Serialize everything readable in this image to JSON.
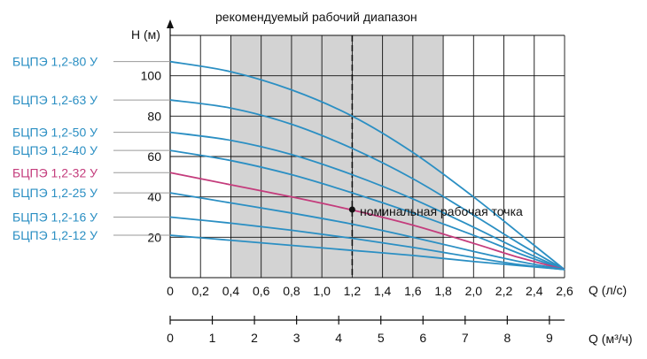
{
  "chart_data": {
    "type": "line",
    "title": "рекомендуемый рабочий диапазон",
    "ylabel": "H (м)",
    "xlabel": "Q (л/с)",
    "xlabel2": "Q (м³/ч)",
    "xlim": [
      0,
      2.6
    ],
    "ylim": [
      0,
      120
    ],
    "x_ticks": [
      "0",
      "0,2",
      "0,4",
      "0,6",
      "0,8",
      "1,0",
      "1,2",
      "1,4",
      "1,6",
      "1,8",
      "2,0",
      "2,2",
      "2,4",
      "2,6"
    ],
    "y_ticks": [
      "20",
      "40",
      "60",
      "80",
      "100"
    ],
    "x2_ticks": [
      "0",
      "1",
      "2",
      "3",
      "4",
      "5",
      "6",
      "7",
      "8",
      "9"
    ],
    "recommended_range": [
      0.4,
      1.8
    ],
    "nominal_point": {
      "x": 1.2,
      "label": "номинальная рабочая точка"
    },
    "colors": {
      "curve": "#2b8fc3",
      "highlight": "#c43c7c",
      "band": "#d3d3d3",
      "label": "#2b8fc3"
    },
    "series": [
      {
        "name": "БЦПЭ 1,2-80 У",
        "highlight": false,
        "x": [
          0,
          0.4,
          0.8,
          1.2,
          1.6,
          2.0,
          2.3,
          2.6
        ],
        "values": [
          107,
          102,
          93,
          80,
          62,
          40,
          22,
          4
        ]
      },
      {
        "name": "БЦПЭ 1,2-63 У",
        "highlight": false,
        "x": [
          0,
          0.4,
          0.8,
          1.2,
          1.6,
          2.0,
          2.3,
          2.6
        ],
        "values": [
          88,
          84,
          76,
          64,
          49,
          31,
          17,
          4
        ]
      },
      {
        "name": "БЦПЭ 1,2-50 У",
        "highlight": false,
        "x": [
          0,
          0.4,
          0.8,
          1.2,
          1.6,
          2.0,
          2.3,
          2.6
        ],
        "values": [
          72,
          68,
          61,
          51,
          39,
          25,
          14,
          4
        ]
      },
      {
        "name": "БЦПЭ 1,2-40 У",
        "highlight": false,
        "x": [
          0,
          0.4,
          0.8,
          1.2,
          1.6,
          2.0,
          2.3,
          2.6
        ],
        "values": [
          63,
          58,
          51,
          42,
          32,
          21,
          12,
          4
        ]
      },
      {
        "name": "БЦПЭ 1,2-32 У",
        "highlight": true,
        "x": [
          0,
          0.4,
          0.8,
          1.2,
          1.6,
          2.0,
          2.3,
          2.6
        ],
        "values": [
          52,
          46,
          40,
          33.5,
          26,
          17,
          10,
          4
        ]
      },
      {
        "name": "БЦПЭ 1,2-25 У",
        "highlight": false,
        "x": [
          0,
          0.4,
          0.8,
          1.2,
          1.6,
          2.0,
          2.3,
          2.6
        ],
        "values": [
          42,
          37,
          32,
          26.5,
          20,
          13,
          8,
          4
        ]
      },
      {
        "name": "БЦПЭ 1,2-16 У",
        "highlight": false,
        "x": [
          0,
          0.4,
          0.8,
          1.2,
          1.6,
          2.0,
          2.3,
          2.6
        ],
        "values": [
          30,
          27,
          23.5,
          19.5,
          15,
          10,
          6.5,
          4
        ]
      },
      {
        "name": "БЦПЭ 1,2-12 У",
        "highlight": false,
        "x": [
          0,
          0.4,
          0.8,
          1.2,
          1.6,
          2.0,
          2.3,
          2.6
        ],
        "values": [
          21,
          18.5,
          16,
          13.5,
          11,
          8,
          6,
          4
        ]
      }
    ]
  }
}
